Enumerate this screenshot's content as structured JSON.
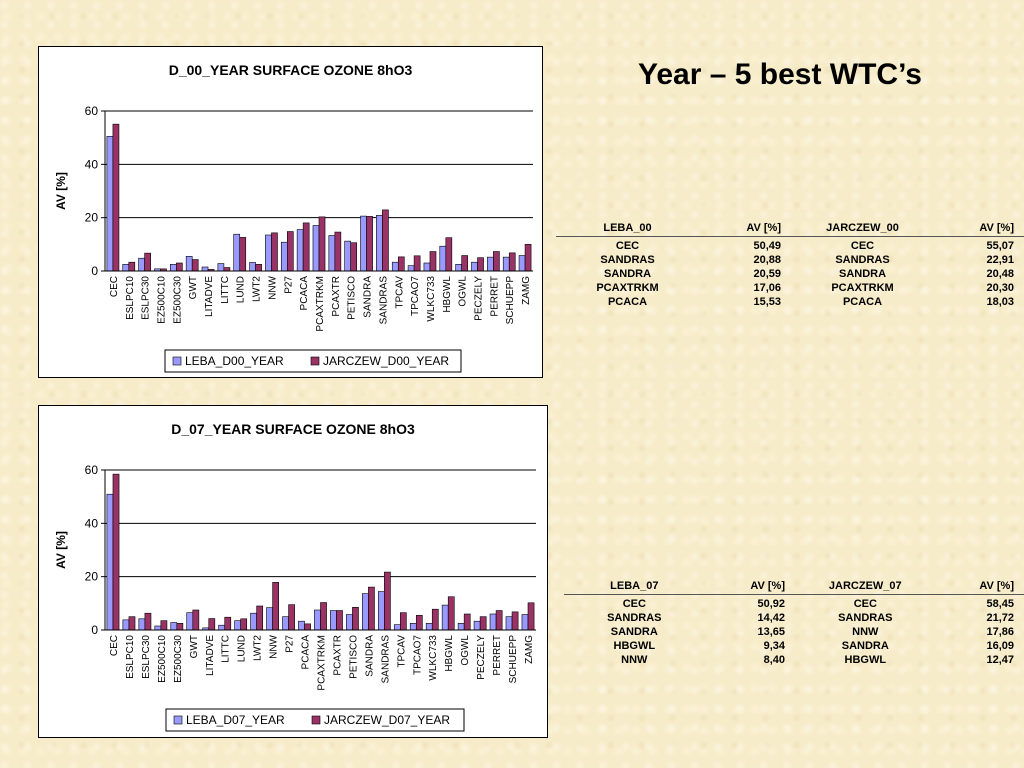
{
  "slide_title": "Year – 5 best WTC’s",
  "chart_data": [
    {
      "type": "bar",
      "title": "D_00_YEAR  SURFACE OZONE 8hO3",
      "xlabel": "",
      "ylabel": "AV [%]",
      "ylim": [
        0,
        60
      ],
      "yticks": [
        0,
        20,
        40,
        60
      ],
      "grid": true,
      "legend_position": "bottom",
      "categories": [
        "CEC",
        "ESLPC10",
        "ESLPC30",
        "EZ500C10",
        "EZ500C30",
        "GWT",
        "LITADVE",
        "LITTC",
        "LUND",
        "LWT2",
        "NNW",
        "P27",
        "PCACA",
        "PCAXTRKM",
        "PCAXTR",
        "PETISCO",
        "SANDRA",
        "SANDRAS",
        "TPCAV",
        "TPCAO7",
        "WLKC733",
        "HBGWL",
        "OGWL",
        "PECZELY",
        "PERRET",
        "SCHUEPP",
        "ZAMG"
      ],
      "series": [
        {
          "name": "LEBA_D00_YEAR",
          "color": "#9999ff",
          "values": [
            50.49,
            2.5,
            4.8,
            0.8,
            2.5,
            5.5,
            1.5,
            2.8,
            13.8,
            3.2,
            13.5,
            10.8,
            15.53,
            17.06,
            13.3,
            11.2,
            20.59,
            20.88,
            3.3,
            2.0,
            3.0,
            9.3,
            2.5,
            3.3,
            5.2,
            5.2,
            5.8
          ]
        },
        {
          "name": "JARCZEW_D00_YEAR",
          "color": "#993366",
          "values": [
            55.07,
            3.3,
            6.7,
            0.8,
            3.0,
            4.3,
            0.6,
            1.3,
            12.6,
            2.5,
            14.3,
            14.8,
            18.03,
            20.3,
            14.6,
            10.6,
            20.48,
            22.91,
            5.3,
            5.7,
            7.3,
            12.5,
            5.8,
            5.0,
            7.3,
            6.8,
            10.0
          ]
        }
      ]
    },
    {
      "type": "bar",
      "title": "D_07_YEAR  SURFACE OZONE 8hO3",
      "xlabel": "",
      "ylabel": "AV [%]",
      "ylim": [
        0,
        60
      ],
      "yticks": [
        0,
        20,
        40,
        60
      ],
      "grid": true,
      "legend_position": "bottom",
      "categories": [
        "CEC",
        "ESLPC10",
        "ESLPC30",
        "EZ500C10",
        "EZ500C30",
        "GWT",
        "LITADVE",
        "LITTC",
        "LUND",
        "LWT2",
        "NNW",
        "P27",
        "PCACA",
        "PCAXTRKM",
        "PCAXTR",
        "PETISCO",
        "SANDRA",
        "SANDRAS",
        "TPCAV",
        "TPCAO7",
        "WLKC733",
        "HBGWL",
        "OGWL",
        "PECZELY",
        "PERRET",
        "SCHUEPP",
        "ZAMG"
      ],
      "series": [
        {
          "name": "LEBA_D07_YEAR",
          "color": "#9999ff",
          "values": [
            50.92,
            3.8,
            4.2,
            1.5,
            2.8,
            6.5,
            0.8,
            1.8,
            3.5,
            6.3,
            8.4,
            5.0,
            3.3,
            7.5,
            7.3,
            5.8,
            13.65,
            14.42,
            2.0,
            2.5,
            2.5,
            9.34,
            2.5,
            3.3,
            6.0,
            5.0,
            5.8
          ]
        },
        {
          "name": "JARCZEW_D07_YEAR",
          "color": "#993366",
          "values": [
            58.45,
            5.0,
            6.3,
            3.5,
            2.5,
            7.5,
            4.3,
            4.8,
            4.2,
            9.0,
            17.86,
            9.5,
            2.3,
            10.3,
            7.3,
            8.5,
            16.09,
            21.72,
            6.5,
            5.5,
            7.8,
            12.47,
            6.0,
            5.0,
            7.3,
            6.8,
            10.2
          ]
        }
      ]
    }
  ],
  "table_00": {
    "headers": [
      "LEBA_00",
      "AV [%]",
      "JARCZEW_00",
      "AV [%]"
    ],
    "rows": [
      [
        "CEC",
        "50,49",
        "CEC",
        "55,07"
      ],
      [
        "SANDRAS",
        "20,88",
        "SANDRAS",
        "22,91"
      ],
      [
        "SANDRA",
        "20,59",
        "SANDRA",
        "20,48"
      ],
      [
        "PCAXTRKM",
        "17,06",
        "PCAXTRKM",
        "20,30"
      ],
      [
        "PCACA",
        "15,53",
        "PCACA",
        "18,03"
      ]
    ]
  },
  "table_07": {
    "headers": [
      "LEBA_07",
      "AV [%]",
      "JARCZEW_07",
      "AV [%]"
    ],
    "rows": [
      [
        "CEC",
        "50,92",
        "CEC",
        "58,45"
      ],
      [
        "SANDRAS",
        "14,42",
        "SANDRAS",
        "21,72"
      ],
      [
        "SANDRA",
        "13,65",
        "NNW",
        "17,86"
      ],
      [
        "HBGWL",
        "9,34",
        "SANDRA",
        "16,09"
      ],
      [
        "NNW",
        "8,40",
        "HBGWL",
        "12,47"
      ]
    ]
  }
}
